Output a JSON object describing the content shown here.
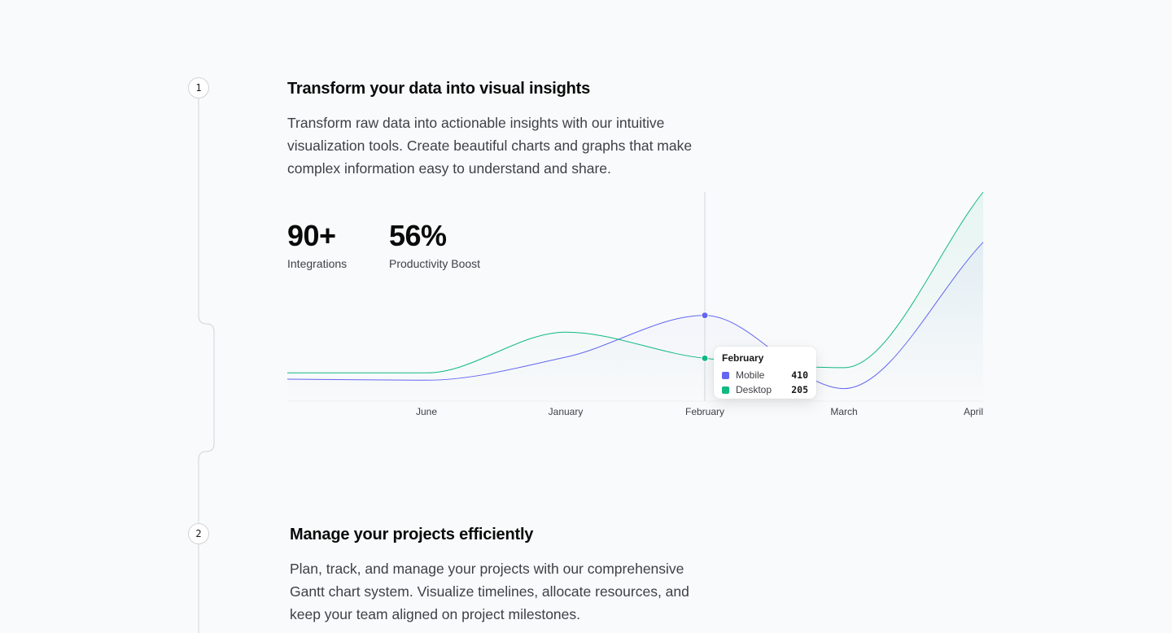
{
  "steps": [
    {
      "number": "1",
      "title": "Transform your data into visual insights",
      "description": "Transform raw data into actionable insights with our intuitive visualization tools. Create beautiful charts and graphs that make complex information easy to understand and share.",
      "stats": [
        {
          "value": "90+",
          "label": "Integrations"
        },
        {
          "value": "56%",
          "label": "Productivity Boost"
        }
      ]
    },
    {
      "number": "2",
      "title": "Manage your projects efficiently",
      "description": "Plan, track, and manage your projects with our comprehensive Gantt chart system. Visualize timelines, allocate resources, and keep your team aligned on project milestones."
    }
  ],
  "colors": {
    "mobile": "#6366f1",
    "desktop": "#10b981",
    "timeline": "#d4d4d8"
  },
  "chart_data": {
    "type": "line",
    "x": [
      "",
      "June",
      "January",
      "February",
      "March",
      "April"
    ],
    "series": [
      {
        "name": "Mobile",
        "values": [
          105,
          100,
          210,
          410,
          60,
          760
        ],
        "color": "#6366f1"
      },
      {
        "name": "Desktop",
        "values": [
          135,
          135,
          330,
          205,
          160,
          1000
        ],
        "color": "#10b981"
      }
    ],
    "ylim": [
      0,
      1000
    ],
    "active_index": 3,
    "tooltip": {
      "title": "February",
      "rows": [
        {
          "label": "Mobile",
          "value": "410"
        },
        {
          "label": "Desktop",
          "value": "205"
        }
      ]
    }
  }
}
